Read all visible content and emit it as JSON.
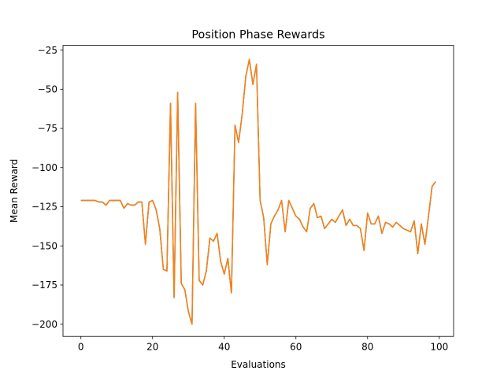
{
  "chart_data": {
    "type": "line",
    "title": "Position Phase Rewards",
    "xlabel": "Evaluations",
    "ylabel": "Mean Reward",
    "xlim": [
      -5,
      104
    ],
    "ylim": [
      -207.8,
      -22.0
    ],
    "xticks": [
      0,
      20,
      40,
      60,
      80,
      100
    ],
    "yticks": [
      -200,
      -175,
      -150,
      -125,
      -100,
      -75,
      -50,
      -25
    ],
    "grid": false,
    "legend": "none",
    "series": [
      {
        "color": "#ff7f0e",
        "overlay_color": "#1f77b4",
        "x": [
          0,
          1,
          2,
          3,
          4,
          5,
          6,
          7,
          8,
          9,
          10,
          11,
          12,
          13,
          14,
          15,
          16,
          17,
          18,
          19,
          20,
          21,
          22,
          23,
          24,
          25,
          26,
          27,
          28,
          29,
          30,
          31,
          32,
          33,
          34,
          35,
          36,
          37,
          38,
          39,
          40,
          41,
          42,
          43,
          44,
          45,
          46,
          47,
          48,
          49,
          50,
          51,
          52,
          53,
          54,
          55,
          56,
          57,
          58,
          59,
          60,
          61,
          62,
          63,
          64,
          65,
          66,
          67,
          68,
          69,
          70,
          71,
          72,
          73,
          74,
          75,
          76,
          77,
          78,
          79,
          80,
          81,
          82,
          83,
          84,
          85,
          86,
          87,
          88,
          89,
          90,
          91,
          92,
          93,
          94,
          95,
          96,
          97,
          98,
          99
        ],
        "y": [
          -121,
          -121,
          -121,
          -121,
          -121,
          -122,
          -122,
          -124,
          -121,
          -121,
          -121,
          -121,
          -126,
          -123,
          -124,
          -124,
          -122,
          -122,
          -149,
          -122,
          -121,
          -127,
          -139,
          -165,
          -166,
          -59,
          -183,
          -52,
          -174,
          -178,
          -192,
          -200,
          -59,
          -172,
          -175,
          -166,
          -145,
          -147,
          -142,
          -160,
          -168,
          -158,
          -180,
          -73,
          -84,
          -66,
          -42,
          -31,
          -47,
          -34,
          -121,
          -132,
          -162,
          -136,
          -131,
          -127,
          -121,
          -141,
          -121,
          -126,
          -131,
          -133,
          -138,
          -141,
          -126,
          -123,
          -132,
          -131,
          -139,
          -136,
          -133,
          -135,
          -131,
          -127,
          -137,
          -133,
          -137,
          -137,
          -139,
          -153,
          -129,
          -136,
          -136,
          -131,
          -142,
          -135,
          -136,
          -138,
          -135,
          -137,
          -139,
          -140,
          -141,
          -134,
          -155,
          -136,
          -149,
          -131,
          -112,
          -109
        ]
      }
    ]
  }
}
